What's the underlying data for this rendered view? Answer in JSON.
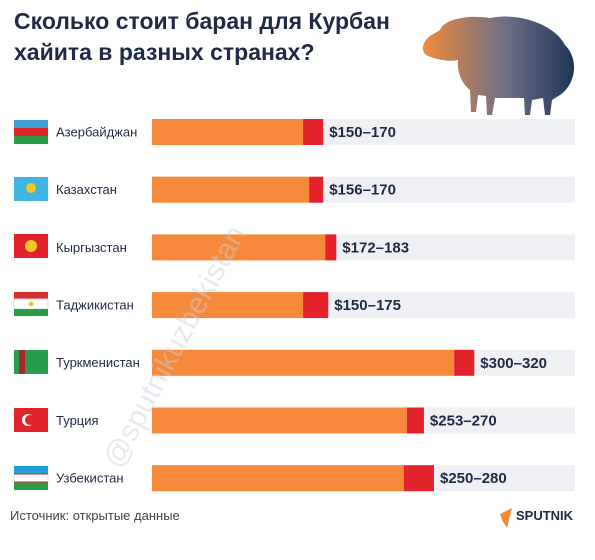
{
  "chart_data": {
    "type": "bar",
    "title": "Сколько стоит баран для Курбан хайита в разных странах?",
    "categories": [
      "Азербайджан",
      "Казахстан",
      "Кыргызстан",
      "Таджикистан",
      "Туркменистан",
      "Турция",
      "Узбекистан"
    ],
    "series": [
      {
        "color": "#f7893b",
        "values": [
          150,
          156,
          172,
          150,
          300,
          253,
          250
        ]
      },
      {
        "color": "#e3232c",
        "values": [
          170,
          170,
          183,
          175,
          320,
          270,
          280
        ]
      }
    ],
    "value_labels": [
      "$150–170",
      "$156–170",
      "$172–183",
      "$150–175",
      "$300–320",
      "$253–270",
      "$250–280"
    ],
    "xlim": [
      0,
      420
    ],
    "source": "Источник: открытые данные",
    "brand": "SPUTNIK",
    "watermark": "@sputnikuzbekistan"
  }
}
